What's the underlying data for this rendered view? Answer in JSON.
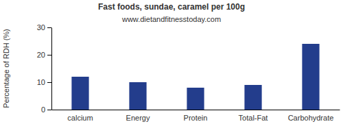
{
  "chart_data": {
    "type": "bar",
    "title": "Fast foods, sundae, caramel per 100g",
    "subtitle": "www.dietandfitnesstoday.com",
    "y_label": "Percentage of RDH (%)",
    "categories": [
      "calcium",
      "Energy",
      "Protein",
      "Total-Fat",
      "Carbohydrate"
    ],
    "values": [
      12,
      10,
      8,
      9,
      24
    ],
    "color": "#233d8c",
    "ylim": [
      0,
      30
    ],
    "yticks": [
      0,
      10,
      20,
      30
    ],
    "grid": false
  }
}
